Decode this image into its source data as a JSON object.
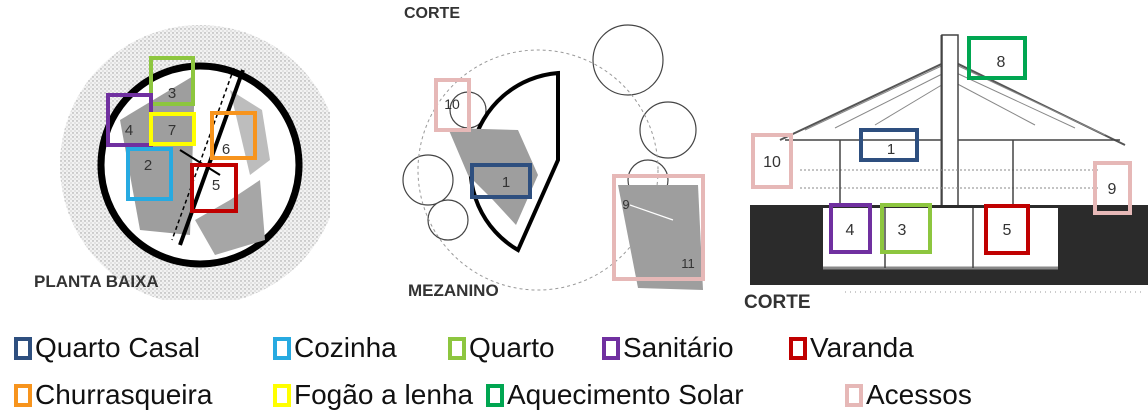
{
  "colors": {
    "quarto_casal": "#2e4f7f",
    "cozinha": "#27aae1",
    "quarto": "#8dc63f",
    "sanitario": "#7030a0",
    "varanda": "#c00000",
    "churrasqueira": "#f7941d",
    "fogao": "#ffff00",
    "aquecimento": "#00a651",
    "acessos": "#e6b8b7"
  },
  "panels": {
    "planta": {
      "caption": "PLANTA BAIXA",
      "labels": [
        "3",
        "4",
        "7",
        "2",
        "6",
        "5"
      ]
    },
    "mezanino": {
      "caption": "MEZANINO",
      "top_text": "CORTE",
      "labels": [
        "10",
        "1",
        "9",
        "11"
      ]
    },
    "corte": {
      "caption": "CORTE",
      "labels": [
        "8",
        "1",
        "10",
        "9",
        "4",
        "3",
        "5"
      ]
    }
  },
  "legend": [
    {
      "label": "Quarto Casal",
      "color": "#2e4f7f"
    },
    {
      "label": "Cozinha",
      "color": "#27aae1"
    },
    {
      "label": "Quarto",
      "color": "#8dc63f"
    },
    {
      "label": "Sanitário",
      "color": "#7030a0"
    },
    {
      "label": "Varanda",
      "color": "#c00000"
    },
    {
      "label": "Churrasqueira",
      "color": "#f7941d"
    },
    {
      "label": "Fogão a lenha",
      "color": "#ffff00"
    },
    {
      "label": "Aquecimento Solar",
      "color": "#00a651"
    },
    {
      "label": "Acessos",
      "color": "#e6b8b7"
    }
  ]
}
